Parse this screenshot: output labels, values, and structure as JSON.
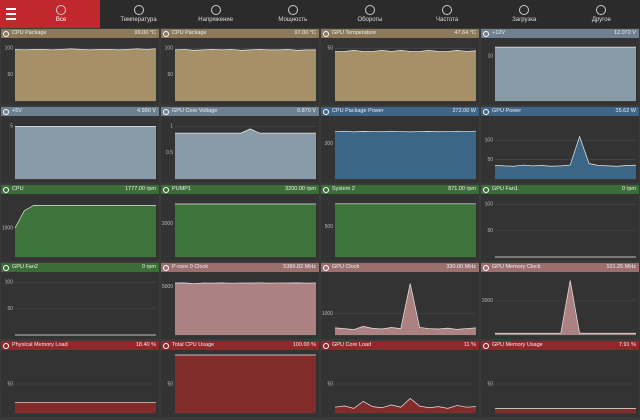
{
  "nav": {
    "tabs": [
      "Все",
      "Температура",
      "Напряжение",
      "Мощность",
      "Обороты",
      "Частота",
      "Загрузка",
      "Другое"
    ]
  },
  "panels": [
    {
      "title": "CPU Package",
      "value": "99.00 °C",
      "header_color": "#8c7a5a",
      "color": "#b39a6e",
      "ylim": [
        0,
        110
      ],
      "yticks": [
        50,
        100
      ],
      "values": [
        98,
        97,
        98,
        98,
        97,
        98,
        99,
        98,
        97,
        98,
        98,
        97,
        98,
        99,
        98,
        99
      ]
    },
    {
      "title": "CPU Package",
      "value": "97.00 °C",
      "header_color": "#8c7a5a",
      "color": "#b39a6e",
      "ylim": [
        0,
        110
      ],
      "yticks": [
        50,
        100
      ],
      "values": [
        97,
        98,
        96,
        97,
        98,
        97,
        98,
        96,
        97,
        98,
        97,
        97,
        98,
        96,
        97,
        97
      ]
    },
    {
      "title": "GPU Temperature",
      "value": "47.64 °C",
      "header_color": "#8c7a5a",
      "color": "#b39a6e",
      "ylim": [
        0,
        55
      ],
      "yticks": [
        50
      ],
      "values": [
        47,
        47,
        48,
        47,
        47,
        48,
        47,
        48,
        47,
        47,
        48,
        47,
        47,
        48,
        47,
        47.64
      ]
    },
    {
      "title": "+12V",
      "value": "12.072 V",
      "header_color": "#6f8190",
      "color": "#93a6b5",
      "ylim": [
        0,
        13
      ],
      "yticks": [
        10
      ],
      "values": [
        12.072,
        12.072,
        12.072,
        12.072,
        12.072,
        12.072,
        12.072,
        12.072,
        12.072,
        12.072,
        12.072,
        12.072,
        12.072,
        12.072,
        12.072,
        12.072
      ]
    },
    {
      "title": "+5V",
      "value": "4.990 V",
      "header_color": "#6f8190",
      "color": "#93a6b5",
      "ylim": [
        0,
        5.5
      ],
      "yticks": [
        5
      ],
      "values": [
        4.99,
        4.99,
        4.99,
        4.99,
        4.99,
        4.99,
        4.99,
        4.99,
        4.99,
        4.99,
        4.99,
        4.99,
        4.99,
        4.99,
        4.99,
        4.99
      ]
    },
    {
      "title": "GPU Core Voltage",
      "value": "0.870 V",
      "header_color": "#6f8190",
      "color": "#93a6b5",
      "ylim": [
        0,
        1.1
      ],
      "yticks": [
        0.5,
        1
      ],
      "values": [
        0.87,
        0.87,
        0.87,
        0.87,
        0.87,
        0.87,
        0.87,
        0.87,
        0.95,
        0.87,
        0.87,
        0.87,
        0.87,
        0.87,
        0.87,
        0.87
      ]
    },
    {
      "title": "CPU Package Power",
      "value": "272.00 W",
      "header_color": "#3f6587",
      "color": "#3d6b8f",
      "ylim": [
        0,
        330
      ],
      "yticks": [
        200
      ],
      "values": [
        270,
        272,
        268,
        271,
        270,
        269,
        272,
        270,
        268,
        270,
        271,
        269,
        270,
        272,
        270,
        272
      ]
    },
    {
      "title": "GPU Power",
      "value": "35.62 W",
      "header_color": "#3f6587",
      "color": "#3d6b8f",
      "ylim": [
        0,
        150
      ],
      "yticks": [
        50,
        100
      ],
      "values": [
        35,
        34,
        33,
        36,
        34,
        35,
        33,
        34,
        36,
        110,
        40,
        35,
        34,
        33,
        35,
        35.62
      ]
    },
    {
      "title": "CPU",
      "value": "1777.00 rpm",
      "header_color": "#3b6e36",
      "color": "#3f7a3c",
      "ylim": [
        0,
        2000
      ],
      "yticks": [
        1000
      ],
      "values": [
        1000,
        1600,
        1780,
        1777,
        1777,
        1777,
        1777,
        1777,
        1777,
        1777,
        1777,
        1777,
        1777,
        1777,
        1777,
        1777
      ]
    },
    {
      "title": "PUMP1",
      "value": "3200.00 rpm",
      "header_color": "#3b6e36",
      "color": "#3f7a3c",
      "ylim": [
        0,
        3500
      ],
      "yticks": [
        2000
      ],
      "values": [
        3200,
        3200,
        3200,
        3200,
        3200,
        3200,
        3200,
        3200,
        3200,
        3200,
        3200,
        3200,
        3200,
        3200,
        3200,
        3200
      ]
    },
    {
      "title": "System 2",
      "value": "871.00 rpm",
      "header_color": "#3b6e36",
      "color": "#3f7a3c",
      "ylim": [
        0,
        950
      ],
      "yticks": [
        500
      ],
      "values": [
        871,
        871,
        871,
        871,
        871,
        871,
        871,
        871,
        871,
        871,
        871,
        871,
        871,
        871,
        871,
        871
      ]
    },
    {
      "title": "GPU Fan1",
      "value": "0 rpm",
      "header_color": "#3b6e36",
      "color": "#3f7a3c",
      "ylim": [
        0,
        110
      ],
      "yticks": [
        50,
        100
      ],
      "values": [
        0,
        0,
        0,
        0,
        0,
        0,
        0,
        0,
        0,
        0,
        0,
        0,
        0,
        0,
        0,
        0
      ]
    },
    {
      "title": "GPU Fan2",
      "value": "0 rpm",
      "header_color": "#3b6e36",
      "color": "#3f7a3c",
      "ylim": [
        0,
        110
      ],
      "yticks": [
        50,
        100
      ],
      "values": [
        0,
        0,
        0,
        0,
        0,
        0,
        0,
        0,
        0,
        0,
        0,
        0,
        0,
        0,
        0,
        0
      ]
    },
    {
      "title": "P-core 0 Clock",
      "value": "5386.82 MHz",
      "header_color": "#9c6f6f",
      "color": "#b88a8a",
      "ylim": [
        0,
        6000
      ],
      "yticks": [
        5000
      ],
      "values": [
        5380,
        5390,
        5300,
        5386,
        5370,
        5390,
        5360,
        5386,
        5380,
        5390,
        5370,
        5386,
        5380,
        5390,
        5370,
        5386.82
      ]
    },
    {
      "title": "GPU Clock",
      "value": "330.00 MHz",
      "header_color": "#9c6f6f",
      "color": "#b88a8a",
      "ylim": [
        0,
        2700
      ],
      "yticks": [
        1000
      ],
      "values": [
        330,
        300,
        250,
        400,
        310,
        280,
        350,
        300,
        2400,
        350,
        300,
        280,
        320,
        260,
        300,
        330
      ]
    },
    {
      "title": "GPU Memory Clock",
      "value": "101.25 MHz",
      "header_color": "#9c6f6f",
      "color": "#b88a8a",
      "ylim": [
        0,
        3400
      ],
      "yticks": [
        2000
      ],
      "values": [
        101.25,
        101.25,
        101.25,
        101.25,
        101.25,
        101.25,
        101.25,
        101.25,
        3200,
        101.25,
        101.25,
        101.25,
        101.25,
        101.25,
        101.25,
        101.25
      ]
    },
    {
      "title": "Physical Memory Load",
      "value": "18.40 %",
      "header_color": "#8b2a2a",
      "color": "#8b2a2a",
      "ylim": [
        0,
        100
      ],
      "yticks": [
        50
      ],
      "values": [
        18.4,
        18.4,
        18.4,
        18.4,
        18.4,
        18.4,
        18.4,
        18.4,
        18.4,
        18.4,
        18.4,
        18.4,
        18.4,
        18.4,
        18.4,
        18.4
      ]
    },
    {
      "title": "Total CPU Usage",
      "value": "100.00 %",
      "header_color": "#8b2a2a",
      "color": "#8b2a2a",
      "ylim": [
        0,
        100
      ],
      "yticks": [
        50
      ],
      "values": [
        100,
        100,
        100,
        100,
        100,
        100,
        100,
        100,
        100,
        100,
        100,
        100,
        100,
        100,
        100,
        100
      ]
    },
    {
      "title": "GPU Core Load",
      "value": "11 %",
      "header_color": "#8b2a2a",
      "color": "#8b2a2a",
      "ylim": [
        0,
        100
      ],
      "yticks": [
        50
      ],
      "values": [
        10,
        12,
        8,
        20,
        11,
        9,
        14,
        10,
        25,
        12,
        9,
        11,
        8,
        13,
        10,
        11
      ]
    },
    {
      "title": "GPU Memory Usage",
      "value": "7.91 %",
      "header_color": "#8b2a2a",
      "color": "#8b2a2a",
      "ylim": [
        0,
        100
      ],
      "yticks": [
        50
      ],
      "values": [
        7.91,
        7.91,
        7.91,
        7.91,
        7.91,
        7.91,
        7.91,
        7.91,
        7.91,
        7.91,
        7.91,
        7.91,
        7.91,
        7.91,
        7.91,
        7.91
      ]
    }
  ]
}
